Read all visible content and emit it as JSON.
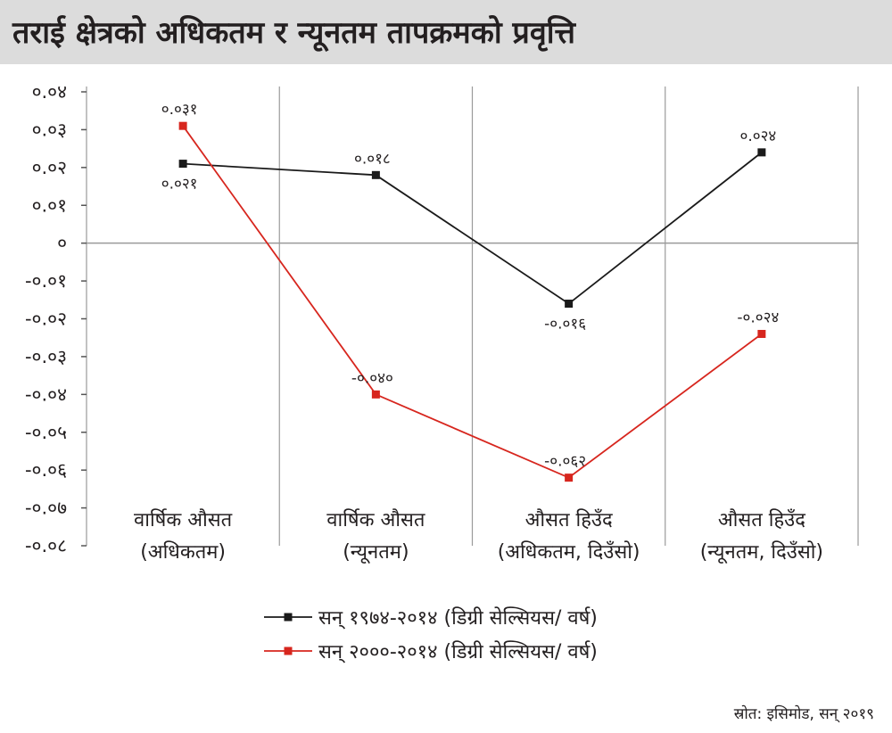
{
  "title": "तराई क्षेत्रको अधिकतम र न्यूनतम तापक्रमको प्रवृत्ति",
  "source": "स्रोत: इसिमोड, सन् २०१९",
  "chart_data": {
    "type": "line",
    "title": "तराई क्षेत्रको अधिकतम र न्यूनतम तापक्रमको प्रवृत्ति",
    "categories": [
      [
        "वार्षिक औसत",
        "(अधिकतम)"
      ],
      [
        "वार्षिक औसत",
        "(न्यूनतम)"
      ],
      [
        "औसत हिउँद",
        "(अधिकतम, दिउँसो)"
      ],
      [
        "औसत हिउँद",
        "(न्यूनतम, दिउँसो)"
      ]
    ],
    "ylim": [
      -0.08,
      0.04
    ],
    "yticks": [
      0.04,
      0.03,
      0.02,
      0.01,
      0,
      -0.01,
      -0.02,
      -0.03,
      -0.04,
      -0.05,
      -0.06,
      -0.07,
      -0.08
    ],
    "ytick_labels": [
      "०.०४",
      "०.०३",
      "०.०२",
      "०.०१",
      "०",
      "-०.०१",
      "-०.०२",
      "-०.०३",
      "-०.०४",
      "-०.०५",
      "-०.०६",
      "-०.०७",
      "-०.०८"
    ],
    "grid": "vertical",
    "legend_position": "bottom-center",
    "series": [
      {
        "name": "सन् १९७४-२०१४ (डिग्री सेल्सियस/ वर्ष)",
        "color": "#1a1a1a",
        "values": [
          0.021,
          0.018,
          -0.016,
          0.024
        ],
        "labels": [
          "०.०२१",
          "०.०१८",
          "-०.०१६",
          "०.०२४"
        ],
        "label_positions": [
          "below",
          "above",
          "below",
          "above"
        ]
      },
      {
        "name": "सन् २०००-२०१४ (डिग्री सेल्सियस/ वर्ष)",
        "color": "#d7261e",
        "values": [
          0.031,
          -0.04,
          -0.062,
          -0.024
        ],
        "labels": [
          "०.०३१",
          "-०.०४०",
          "-०.०६२",
          "-०.०२४"
        ],
        "label_positions": [
          "above",
          "above",
          "above",
          "above"
        ]
      }
    ]
  }
}
